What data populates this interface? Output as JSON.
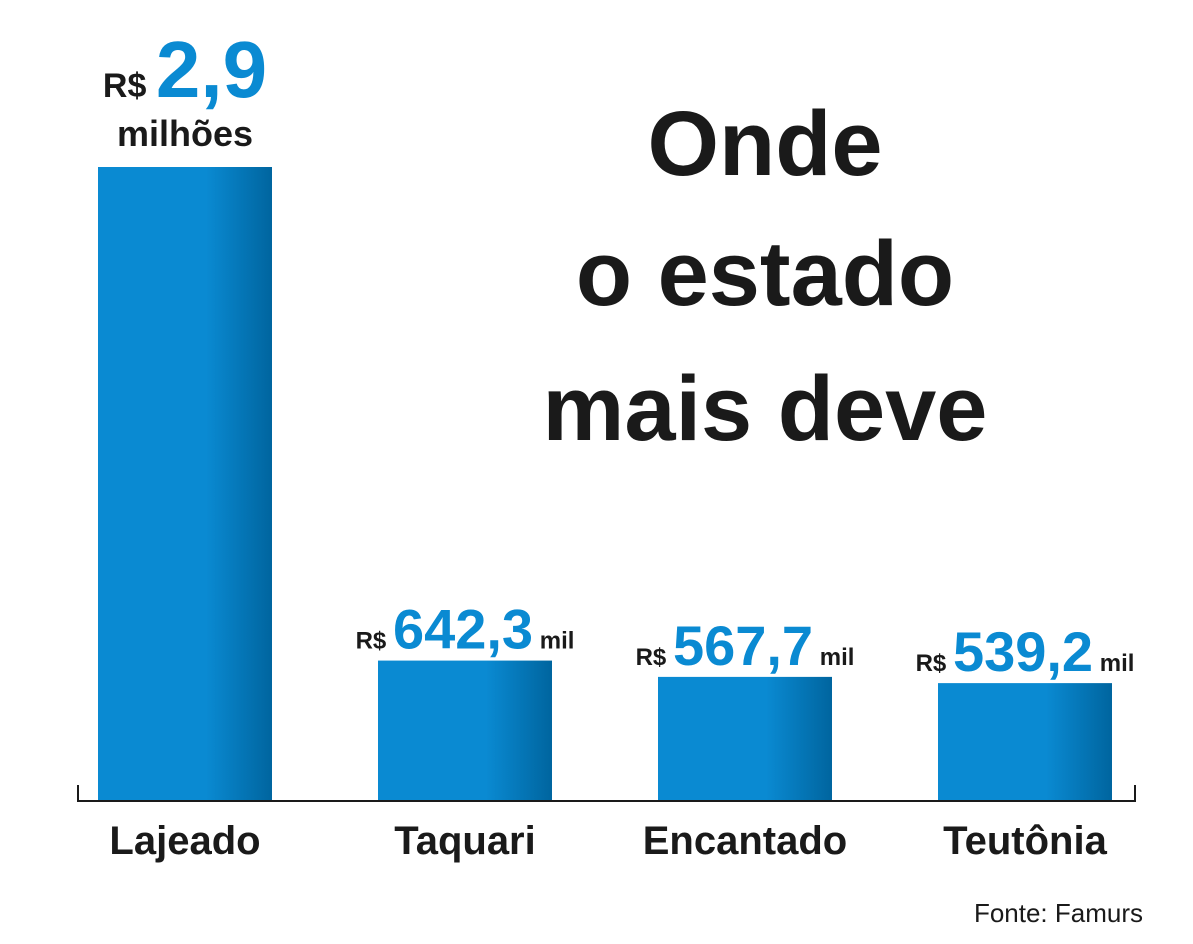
{
  "chart_data": {
    "type": "bar",
    "title_lines": [
      "Onde",
      "o estado",
      "mais deve"
    ],
    "categories": [
      "Lajeado",
      "Taquari",
      "Encantado",
      "Teutônia"
    ],
    "values": [
      2900,
      642.3,
      567.7,
      539.2
    ],
    "value_unit": "R$ mil",
    "labels": [
      {
        "currency": "R$",
        "number": "2,9",
        "unit": "milhões"
      },
      {
        "currency": "R$",
        "number": "642,3",
        "unit": "mil"
      },
      {
        "currency": "R$",
        "number": "567,7",
        "unit": "mil"
      },
      {
        "currency": "R$",
        "number": "539,2",
        "unit": "mil"
      }
    ],
    "ylim": [
      0,
      2900
    ],
    "grid": false,
    "source": "Fonte: Famurs"
  },
  "colors": {
    "bar_light": "#0a8ad2",
    "bar_dark": "#00659f",
    "value_text": "#0a8ad2",
    "text": "#1a1a1a"
  }
}
